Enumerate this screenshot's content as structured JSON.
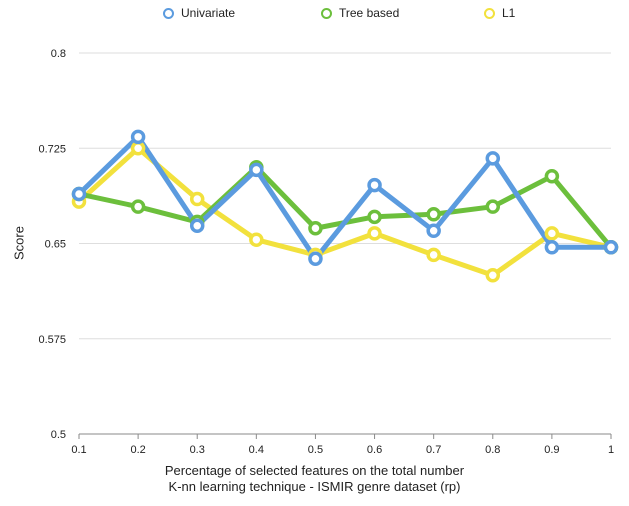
{
  "chart_data": {
    "type": "line",
    "x": [
      0.1,
      0.2,
      0.3,
      0.4,
      0.5,
      0.6,
      0.7,
      0.8,
      0.9,
      1
    ],
    "x_tick_labels": [
      "0.1",
      "0.2",
      "0.3",
      "0.4",
      "0.5",
      "0.6",
      "0.7",
      "0.8",
      "0.9",
      "1"
    ],
    "y_ticks": [
      0.5,
      0.575,
      0.65,
      0.725,
      0.8
    ],
    "y_tick_labels": [
      "0.5",
      "0.575",
      "0.65",
      "0.725",
      "0.8"
    ],
    "ylim": [
      0.5,
      0.8
    ],
    "xlabel_line1": "Percentage of selected features on the total number",
    "xlabel_line2": "K-nn learning technique - ISMIR genre dataset (rp)",
    "ylabel": "Score",
    "grid": true,
    "legend_position": "top",
    "series": [
      {
        "name": "Univariate",
        "color": "#5b9bdf",
        "values": [
          0.689,
          0.734,
          0.664,
          0.708,
          0.638,
          0.696,
          0.66,
          0.717,
          0.647,
          0.647
        ]
      },
      {
        "name": "Tree based",
        "color": "#6cbf3c",
        "values": [
          0.689,
          0.679,
          0.667,
          0.71,
          0.662,
          0.671,
          0.673,
          0.679,
          0.703,
          0.647
        ]
      },
      {
        "name": "L1",
        "color": "#f2e13d",
        "values": [
          0.683,
          0.725,
          0.685,
          0.653,
          0.641,
          0.658,
          0.641,
          0.625,
          0.658,
          0.647
        ]
      }
    ]
  }
}
